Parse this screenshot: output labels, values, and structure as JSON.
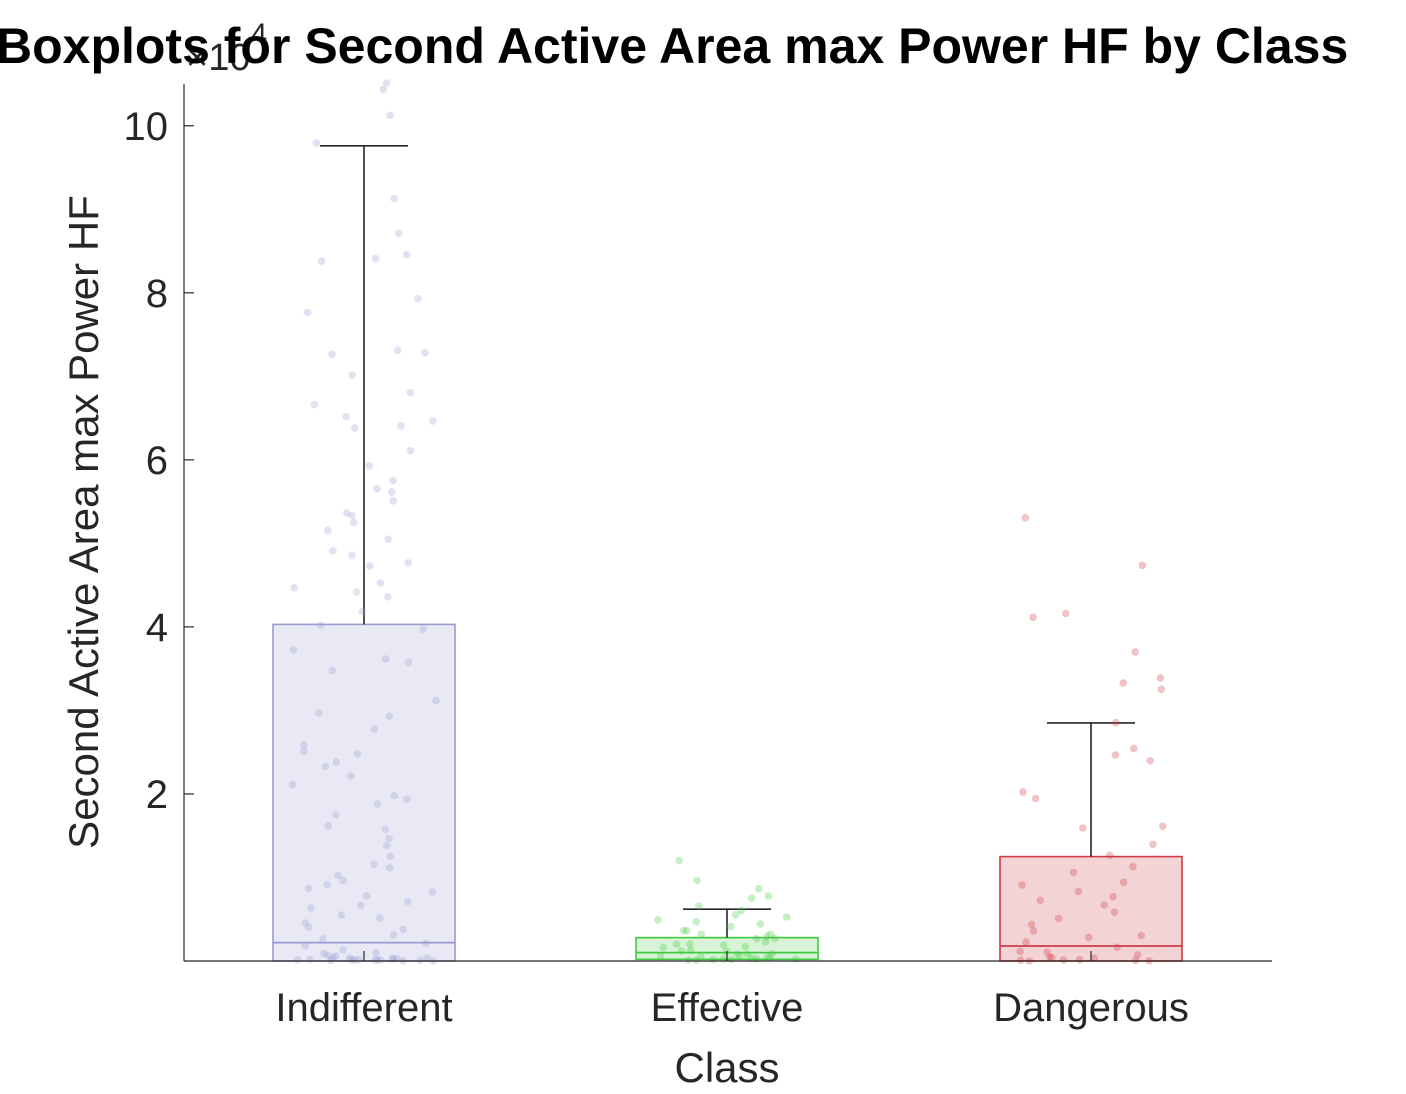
{
  "chart_data": {
    "type": "boxplot",
    "title": "Boxplots for Second Active Area max Power HF by Class",
    "xlabel": "Class",
    "ylabel": "Second Active Area max Power HF",
    "y_exponent_label": "×10",
    "y_exponent_power": "4",
    "ylim": [
      0,
      105000
    ],
    "yticks": [
      20000,
      40000,
      60000,
      80000,
      100000
    ],
    "ytick_labels": [
      "2",
      "4",
      "6",
      "8",
      "10"
    ],
    "categories": [
      "Indifferent",
      "Effective",
      "Dangerous"
    ],
    "boxes": [
      {
        "name": "Indifferent",
        "color": "#9b9ad0",
        "fill": "#e9e9f5",
        "q1": 0,
        "median": 2200,
        "q3": 40300,
        "whisker_low": 0,
        "whisker_high": 97600,
        "points": [
          105000,
          104000,
          101000,
          97600,
          91000,
          87000,
          84500,
          84000,
          83500,
          79000,
          77500,
          73000,
          72500,
          72500,
          70000,
          68000,
          66500,
          65000,
          64500,
          64000,
          63500,
          61000,
          59000,
          57500,
          56500,
          56000,
          55000,
          53500,
          53000,
          52500,
          51500,
          50500,
          49000,
          48500,
          47500,
          47000,
          45000,
          44500,
          44000,
          43500,
          41500,
          40000,
          39500,
          37000,
          36000,
          35500,
          34500,
          31000,
          29500,
          29000,
          27500,
          25500,
          25000,
          24500,
          23500,
          23000,
          22000,
          21000,
          19500,
          19000,
          18500,
          17500,
          16000,
          15500,
          14500,
          13500,
          12500,
          11500,
          11000,
          10000,
          9500,
          9000,
          8500,
          8000,
          7500,
          7000,
          6500,
          6000,
          5500,
          5000,
          4500,
          4000,
          3500,
          3000,
          2500,
          2000,
          1500,
          1000,
          800,
          600,
          400,
          300,
          200,
          100,
          50,
          0,
          0,
          0,
          0,
          0,
          0,
          0,
          0,
          0,
          0,
          0,
          0,
          0,
          0,
          0
        ]
      },
      {
        "name": "Effective",
        "color": "#3fca3f",
        "fill": "#d8f3d8",
        "q1": 200,
        "median": 1000,
        "q3": 2800,
        "whisker_low": 0,
        "whisker_high": 6200,
        "points": [
          11700,
          9300,
          8300,
          7600,
          7200,
          6300,
          5800,
          5500,
          5000,
          4700,
          4400,
          4100,
          3800,
          3600,
          3300,
          3100,
          2900,
          2700,
          2600,
          2400,
          2200,
          2000,
          1900,
          1700,
          1500,
          1400,
          1200,
          1000,
          900,
          800,
          700,
          600,
          500,
          400,
          300,
          200,
          100,
          50,
          0,
          0,
          0,
          0,
          0,
          0,
          0
        ]
      },
      {
        "name": "Dangerous",
        "color": "#cc3c44",
        "fill": "#f3d3d5",
        "q1": 0,
        "median": 1800,
        "q3": 12500,
        "whisker_low": 0,
        "whisker_high": 28500,
        "points": [
          53000,
          47200,
          41600,
          40800,
          36800,
          33600,
          33000,
          32300,
          28500,
          25300,
          24500,
          23800,
          20000,
          19400,
          16000,
          15900,
          13800,
          12300,
          11000,
          10500,
          9400,
          8800,
          8000,
          7600,
          7200,
          6500,
          5800,
          5000,
          4300,
          3500,
          3000,
          2500,
          2000,
          1500,
          1100,
          800,
          500,
          300,
          100,
          0,
          0,
          0,
          0,
          0,
          0,
          0
        ]
      }
    ]
  }
}
